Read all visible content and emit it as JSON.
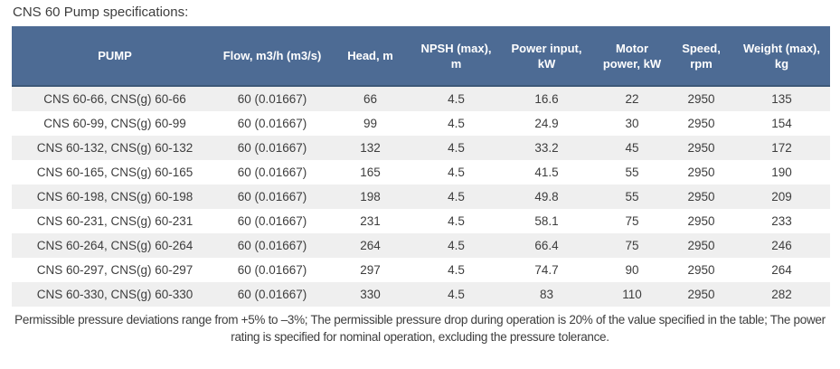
{
  "page": {
    "title": "CNS 60 Pump specifications:"
  },
  "table": {
    "columns": [
      "PUMP",
      "Flow, m3/h (m3/s)",
      "Head, m",
      "NPSH (max), m",
      "Power input, kW",
      "Motor power, kW",
      "Speed, rpm",
      "Weight (max), kg"
    ],
    "rows": [
      [
        "CNS 60-66, CNS(g) 60-66",
        "60 (0.01667)",
        "66",
        "4.5",
        "16.6",
        "22",
        "2950",
        "135"
      ],
      [
        "CNS 60-99, CNS(g) 60-99",
        "60 (0.01667)",
        "99",
        "4.5",
        "24.9",
        "30",
        "2950",
        "154"
      ],
      [
        "CNS 60-132, CNS(g) 60-132",
        "60 (0.01667)",
        "132",
        "4.5",
        "33.2",
        "45",
        "2950",
        "172"
      ],
      [
        "CNS 60-165, CNS(g) 60-165",
        "60 (0.01667)",
        "165",
        "4.5",
        "41.5",
        "55",
        "2950",
        "190"
      ],
      [
        "CNS 60-198, CNS(g) 60-198",
        "60 (0.01667)",
        "198",
        "4.5",
        "49.8",
        "55",
        "2950",
        "209"
      ],
      [
        "CNS 60-231, CNS(g) 60-231",
        "60 (0.01667)",
        "231",
        "4.5",
        "58.1",
        "75",
        "2950",
        "233"
      ],
      [
        "CNS 60-264, CNS(g) 60-264",
        "60 (0.01667)",
        "264",
        "4.5",
        "66.4",
        "75",
        "2950",
        "246"
      ],
      [
        "CNS 60-297, CNS(g) 60-297",
        "60 (0.01667)",
        "297",
        "4.5",
        "74.7",
        "90",
        "2950",
        "264"
      ],
      [
        "CNS 60-330, CNS(g) 60-330",
        "60 (0.01667)",
        "330",
        "4.5",
        "83",
        "110",
        "2950",
        "282"
      ]
    ]
  },
  "footnote": "Permissible pressure deviations range from +5% to –3%; The permissible pressure drop during operation is 20% of the value specified in the table; The power rating is specified for nominal operation, excluding the pressure tolerance.",
  "colors": {
    "header_bg": "#4d6b94",
    "header_text": "#ffffff",
    "header_border": "#3d5878",
    "row_stripe": "#efefef",
    "row_plain": "#ffffff",
    "body_text": "#3d3d3d"
  }
}
